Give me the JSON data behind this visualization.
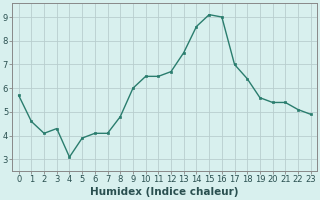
{
  "x": [
    0,
    1,
    2,
    3,
    4,
    5,
    6,
    7,
    8,
    9,
    10,
    11,
    12,
    13,
    14,
    15,
    16,
    17,
    18,
    19,
    20,
    21,
    22,
    23
  ],
  "y": [
    5.7,
    4.6,
    4.1,
    4.3,
    3.1,
    3.9,
    4.1,
    4.1,
    4.8,
    6.0,
    6.5,
    6.5,
    6.7,
    7.5,
    8.6,
    9.1,
    9.0,
    7.0,
    6.4,
    5.6,
    5.4,
    5.4,
    5.1,
    4.9
  ],
  "line_color": "#2a7d6e",
  "marker": "s",
  "marker_size": 2.0,
  "bg_color": "#d8f0ee",
  "grid_color": "#b8cece",
  "xlabel": "Humidex (Indice chaleur)",
  "ylim": [
    2.5,
    9.6
  ],
  "xlim": [
    -0.5,
    23.5
  ],
  "yticks": [
    3,
    4,
    5,
    6,
    7,
    8,
    9
  ],
  "xticks": [
    0,
    1,
    2,
    3,
    4,
    5,
    6,
    7,
    8,
    9,
    10,
    11,
    12,
    13,
    14,
    15,
    16,
    17,
    18,
    19,
    20,
    21,
    22,
    23
  ],
  "tick_fontsize": 6.0,
  "xlabel_fontsize": 7.5,
  "spine_color": "#888888"
}
